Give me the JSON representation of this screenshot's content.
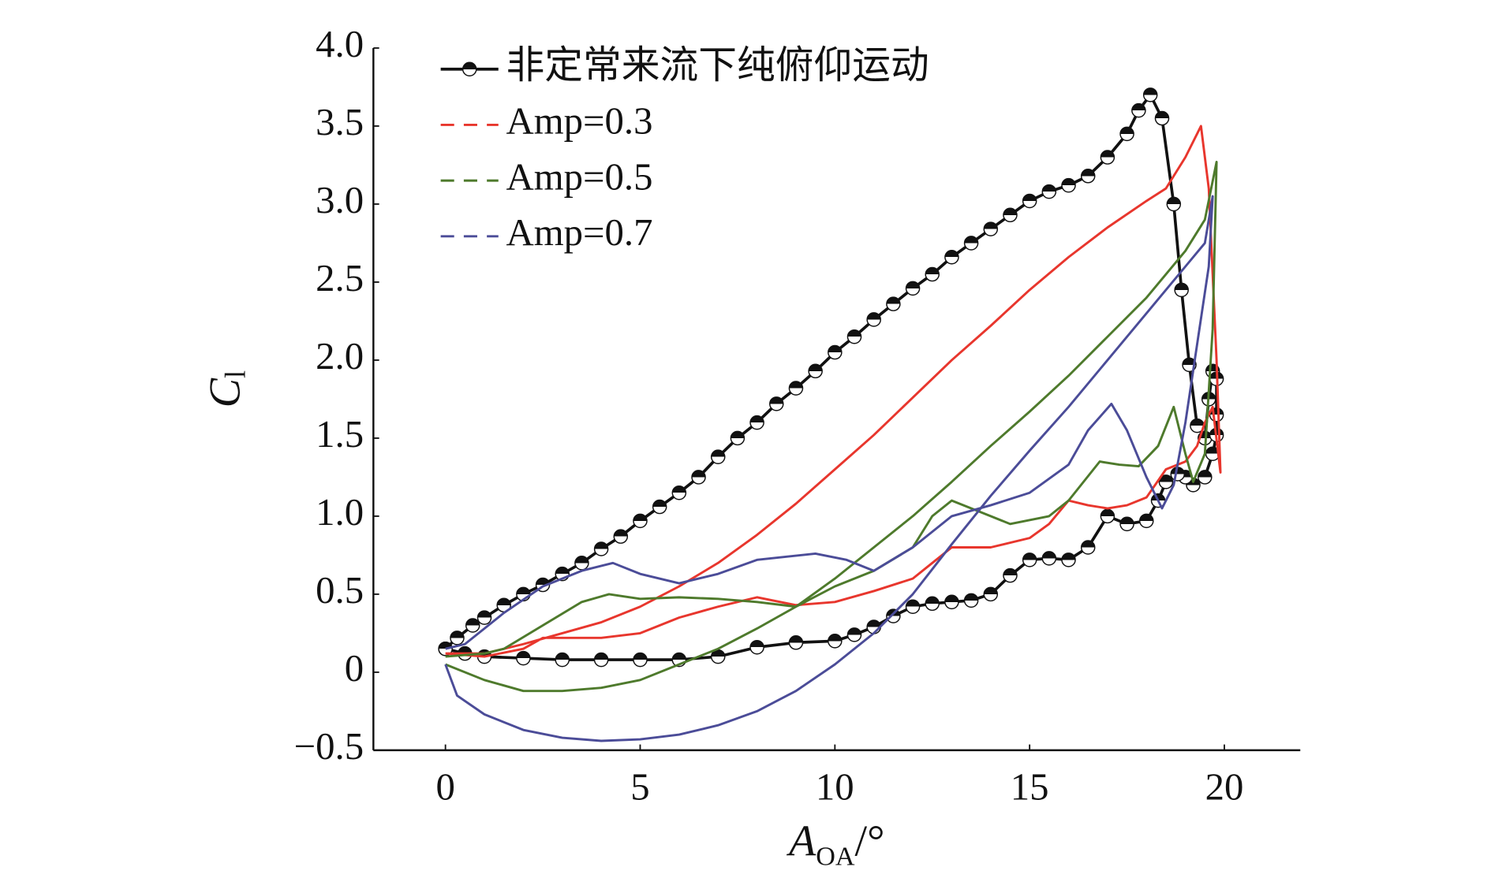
{
  "chart_data": {
    "type": "line",
    "x_label": {
      "main": "A",
      "sub": "OA",
      "unit": "/°"
    },
    "y_label": {
      "main": "C",
      "sub": "l"
    },
    "xlim": [
      -1.85,
      21.95
    ],
    "ylim": [
      -0.5,
      4.0
    ],
    "xticks": [
      0,
      5,
      10,
      15,
      20
    ],
    "yticks": [
      {
        "value": -0.5,
        "label": "−0.5"
      },
      0,
      0.5,
      {
        "value": 1.0,
        "label": "1.0"
      },
      1.5,
      {
        "value": 2.0,
        "label": "2.0"
      },
      2.5,
      {
        "value": 3.0,
        "label": "3.0"
      },
      3.5,
      {
        "value": 4.0,
        "label": "4.0"
      }
    ],
    "grid": false,
    "legend": "upper left",
    "series": [
      {
        "name": "非定常来流下纯俯仰运动",
        "color": "#111111",
        "marker": true,
        "dashed_legend": false,
        "x": [
          0,
          0.3,
          0.7,
          1,
          1.5,
          2,
          2.5,
          3,
          3.5,
          4,
          4.5,
          5,
          5.5,
          6,
          6.5,
          7,
          7.5,
          8,
          8.5,
          9,
          9.5,
          10,
          10.5,
          11,
          11.5,
          12,
          12.5,
          13,
          13.5,
          14,
          14.5,
          15,
          15.5,
          16,
          16.5,
          17,
          17.5,
          17.8,
          18.1,
          18.4,
          18.7,
          18.9,
          19.1,
          19.3,
          19.5,
          19.6,
          19.7,
          19.8,
          19.8,
          19.8,
          19.7,
          19.5,
          19.2,
          19,
          18.8,
          18.5,
          18.3,
          18,
          17.5,
          17,
          16.5,
          16,
          15.5,
          15,
          14.5,
          14,
          13.5,
          13,
          12.5,
          12,
          11.5,
          11,
          10.5,
          10,
          9,
          8,
          7,
          6,
          5,
          4,
          3,
          2,
          1,
          0.5,
          0
        ],
        "y": [
          0.15,
          0.22,
          0.3,
          0.35,
          0.43,
          0.5,
          0.56,
          0.63,
          0.7,
          0.79,
          0.87,
          0.97,
          1.06,
          1.15,
          1.25,
          1.38,
          1.5,
          1.6,
          1.72,
          1.82,
          1.93,
          2.05,
          2.15,
          2.26,
          2.36,
          2.46,
          2.55,
          2.66,
          2.75,
          2.84,
          2.93,
          3.02,
          3.08,
          3.12,
          3.18,
          3.3,
          3.45,
          3.6,
          3.7,
          3.55,
          3.0,
          2.45,
          1.97,
          1.58,
          1.5,
          1.75,
          1.93,
          1.88,
          1.65,
          1.52,
          1.4,
          1.25,
          1.2,
          1.25,
          1.27,
          1.22,
          1.1,
          0.97,
          0.95,
          1.0,
          0.8,
          0.72,
          0.73,
          0.72,
          0.62,
          0.5,
          0.46,
          0.45,
          0.44,
          0.42,
          0.36,
          0.29,
          0.24,
          0.2,
          0.19,
          0.16,
          0.1,
          0.08,
          0.08,
          0.08,
          0.08,
          0.09,
          0.1,
          0.12,
          0.15
        ]
      },
      {
        "name": "Amp=0.3",
        "color": "#e8362d",
        "marker": false,
        "dashed_legend": true,
        "x": [
          0,
          1,
          2,
          3,
          4,
          5,
          6,
          7,
          8,
          9,
          10,
          11,
          12,
          13,
          14,
          15,
          16,
          17,
          18,
          18.5,
          19,
          19.4,
          19.6,
          19.8,
          19.9,
          19.7,
          19.5,
          19.3,
          19,
          18.5,
          18,
          17.5,
          17,
          16.5,
          16,
          15.5,
          15,
          14,
          13,
          12.5,
          12,
          11,
          10,
          9,
          8,
          7,
          6,
          5,
          4,
          3,
          2.5,
          2,
          1,
          0
        ],
        "y": [
          0.12,
          0.12,
          0.18,
          0.25,
          0.32,
          0.42,
          0.55,
          0.7,
          0.88,
          1.08,
          1.3,
          1.52,
          1.76,
          2.0,
          2.22,
          2.45,
          2.66,
          2.85,
          3.02,
          3.1,
          3.3,
          3.5,
          3.1,
          2.0,
          1.28,
          1.7,
          1.6,
          1.45,
          1.35,
          1.3,
          1.12,
          1.07,
          1.05,
          1.07,
          1.1,
          0.95,
          0.86,
          0.8,
          0.8,
          0.7,
          0.6,
          0.52,
          0.45,
          0.43,
          0.48,
          0.42,
          0.35,
          0.25,
          0.22,
          0.22,
          0.22,
          0.15,
          0.1,
          0.12
        ]
      },
      {
        "name": "Amp=0.5",
        "color": "#4e7a2c",
        "marker": false,
        "dashed_legend": true,
        "x": [
          0,
          1,
          2,
          3,
          4,
          5,
          6,
          7,
          8,
          9,
          10,
          11,
          12,
          13,
          14,
          15,
          16,
          17,
          18,
          19,
          19.5,
          19.8,
          19.7,
          19.5,
          19.2,
          19,
          18.7,
          18.3,
          17.8,
          17.3,
          16.8,
          16,
          15.5,
          14.5,
          14,
          13,
          12.5,
          12,
          11,
          10,
          9,
          8,
          7,
          6,
          5,
          4.2,
          3.5,
          2.5,
          1.5,
          1,
          0
        ],
        "y": [
          0.05,
          -0.05,
          -0.12,
          -0.12,
          -0.1,
          -0.05,
          0.05,
          0.15,
          0.28,
          0.42,
          0.6,
          0.8,
          1.0,
          1.22,
          1.45,
          1.67,
          1.9,
          2.15,
          2.4,
          2.7,
          2.9,
          3.27,
          2.2,
          1.4,
          1.22,
          1.4,
          1.7,
          1.45,
          1.32,
          1.33,
          1.35,
          1.1,
          1.0,
          0.95,
          1.0,
          1.1,
          1.0,
          0.8,
          0.65,
          0.55,
          0.42,
          0.45,
          0.47,
          0.48,
          0.47,
          0.5,
          0.45,
          0.3,
          0.15,
          0.12,
          0.1
        ]
      },
      {
        "name": "Amp=0.7",
        "color": "#4b4c98",
        "marker": false,
        "dashed_legend": true,
        "x": [
          0,
          0.3,
          1,
          2,
          3,
          4,
          5,
          6,
          7,
          8,
          9,
          10,
          11,
          12,
          13,
          14,
          15,
          16,
          17,
          18,
          19,
          19.5,
          19.7,
          19.6,
          19.3,
          19,
          18.7,
          18.4,
          18,
          17.5,
          17.1,
          16.5,
          16,
          15,
          14,
          13,
          12,
          11,
          10.3,
          9.5,
          8,
          7,
          6,
          5,
          4.3,
          3.5,
          2.5,
          1.5,
          1,
          0.5,
          0
        ],
        "y": [
          0.05,
          -0.15,
          -0.27,
          -0.37,
          -0.42,
          -0.44,
          -0.43,
          -0.4,
          -0.34,
          -0.25,
          -0.12,
          0.05,
          0.25,
          0.5,
          0.82,
          1.13,
          1.42,
          1.7,
          2.0,
          2.3,
          2.6,
          2.75,
          3.05,
          2.6,
          2.1,
          1.6,
          1.2,
          1.05,
          1.25,
          1.55,
          1.72,
          1.55,
          1.33,
          1.15,
          1.07,
          1.0,
          0.8,
          0.65,
          0.72,
          0.76,
          0.72,
          0.63,
          0.57,
          0.63,
          0.7,
          0.65,
          0.55,
          0.38,
          0.28,
          0.18,
          0.15
        ]
      }
    ]
  }
}
